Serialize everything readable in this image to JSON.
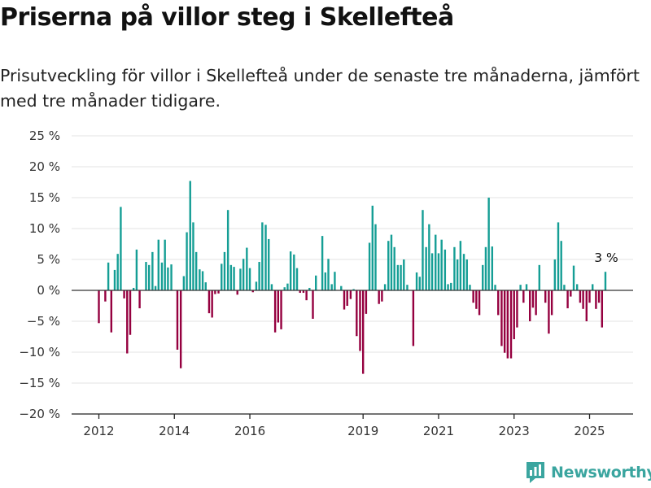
{
  "page": {
    "title": "Priserna på villor steg i Skellefteå",
    "subtitle": "Prisutveckling för villor i Skellefteå under de senaste tre månaderna, jämfört med tre månader tidigare.",
    "brand": "Newsworthy"
  },
  "colors": {
    "positive": "#159e95",
    "negative": "#95003f",
    "grid": "#e3e3e3",
    "zero_line": "#333333",
    "axis_text": "#333333",
    "brand": "#3aa59f"
  },
  "chart_data": {
    "type": "bar",
    "title": "Priserna på villor steg i Skellefteå",
    "subtitle": "Prisutveckling för villor i Skellefteå under de senaste tre månaderna, jämfört med tre månader tidigare.",
    "xlabel": "",
    "ylabel": "",
    "ylim": [
      -20,
      25
    ],
    "y_ticks": [
      25,
      20,
      15,
      10,
      5,
      0,
      -5,
      -10,
      -15,
      -20
    ],
    "y_tick_labels": [
      "25 %",
      "20 %",
      "15 %",
      "10 %",
      "5 %",
      "0 %",
      "−5 %",
      "−10 %",
      "−15 %",
      "−20 %"
    ],
    "x_tick_labels": [
      "2012",
      "2014",
      "2016",
      "2019",
      "2021",
      "2023",
      "2025"
    ],
    "x_tick_years": [
      2012,
      2014,
      2016,
      2019,
      2021,
      2023,
      2025
    ],
    "grid": true,
    "annotation": {
      "text": "3 %",
      "value": 3
    },
    "series": [
      {
        "values": [
          [
            2012.0,
            -5.3
          ],
          [
            2012.17,
            -1.8
          ],
          [
            2012.25,
            4.5
          ],
          [
            2012.33,
            -6.8
          ],
          [
            2012.42,
            3.3
          ],
          [
            2012.5,
            5.9
          ],
          [
            2012.58,
            13.5
          ],
          [
            2012.67,
            -1.3
          ],
          [
            2012.75,
            -10.2
          ],
          [
            2012.83,
            -7.2
          ],
          [
            2012.92,
            0.4
          ],
          [
            2013.0,
            6.6
          ],
          [
            2013.08,
            -2.9
          ],
          [
            2013.25,
            4.6
          ],
          [
            2013.33,
            4.1
          ],
          [
            2013.42,
            6.2
          ],
          [
            2013.5,
            0.7
          ],
          [
            2013.58,
            8.2
          ],
          [
            2013.67,
            4.5
          ],
          [
            2013.75,
            8.2
          ],
          [
            2013.83,
            3.7
          ],
          [
            2013.92,
            4.2
          ],
          [
            2014.08,
            -9.6
          ],
          [
            2014.17,
            -12.6
          ],
          [
            2014.25,
            2.3
          ],
          [
            2014.33,
            9.4
          ],
          [
            2014.42,
            17.7
          ],
          [
            2014.5,
            11.0
          ],
          [
            2014.58,
            6.2
          ],
          [
            2014.67,
            3.4
          ],
          [
            2014.75,
            3.1
          ],
          [
            2014.83,
            1.3
          ],
          [
            2014.92,
            -3.7
          ],
          [
            2015.0,
            -4.4
          ],
          [
            2015.08,
            -0.6
          ],
          [
            2015.17,
            -0.5
          ],
          [
            2015.25,
            4.3
          ],
          [
            2015.33,
            6.2
          ],
          [
            2015.42,
            13.0
          ],
          [
            2015.5,
            4.1
          ],
          [
            2015.58,
            3.8
          ],
          [
            2015.67,
            -0.7
          ],
          [
            2015.75,
            3.5
          ],
          [
            2015.83,
            5.1
          ],
          [
            2015.92,
            6.9
          ],
          [
            2016.0,
            3.6
          ],
          [
            2016.08,
            -0.3
          ],
          [
            2016.17,
            1.4
          ],
          [
            2016.25,
            4.6
          ],
          [
            2016.33,
            11.0
          ],
          [
            2016.42,
            10.6
          ],
          [
            2016.5,
            8.3
          ],
          [
            2016.58,
            1.0
          ],
          [
            2016.67,
            -6.8
          ],
          [
            2016.75,
            -5.2
          ],
          [
            2016.83,
            -6.3
          ],
          [
            2016.92,
            0.5
          ],
          [
            2017.0,
            1.1
          ],
          [
            2017.08,
            6.3
          ],
          [
            2017.17,
            5.8
          ],
          [
            2017.25,
            3.6
          ],
          [
            2017.33,
            -0.4
          ],
          [
            2017.42,
            -0.4
          ],
          [
            2017.5,
            -1.6
          ],
          [
            2017.58,
            0.4
          ],
          [
            2017.67,
            -4.6
          ],
          [
            2017.75,
            2.4
          ],
          [
            2017.92,
            8.8
          ],
          [
            2018.0,
            2.9
          ],
          [
            2018.08,
            5.1
          ],
          [
            2018.17,
            1.0
          ],
          [
            2018.25,
            3.0
          ],
          [
            2018.42,
            0.7
          ],
          [
            2018.5,
            -3.1
          ],
          [
            2018.58,
            -2.5
          ],
          [
            2018.67,
            -1.4
          ],
          [
            2018.75,
            0.2
          ],
          [
            2018.83,
            -7.4
          ],
          [
            2018.92,
            -9.8
          ],
          [
            2019.0,
            -13.5
          ],
          [
            2019.08,
            -3.8
          ],
          [
            2019.17,
            7.7
          ],
          [
            2019.25,
            13.7
          ],
          [
            2019.33,
            10.7
          ],
          [
            2019.42,
            -2.2
          ],
          [
            2019.5,
            -1.8
          ],
          [
            2019.58,
            1.0
          ],
          [
            2019.67,
            8.0
          ],
          [
            2019.75,
            9.0
          ],
          [
            2019.83,
            7.0
          ],
          [
            2019.92,
            4.1
          ],
          [
            2020.0,
            4.1
          ],
          [
            2020.08,
            5.0
          ],
          [
            2020.17,
            0.9
          ],
          [
            2020.33,
            -9.0
          ],
          [
            2020.42,
            2.9
          ],
          [
            2020.5,
            2.2
          ],
          [
            2020.58,
            13.0
          ],
          [
            2020.67,
            7.0
          ],
          [
            2020.75,
            10.7
          ],
          [
            2020.83,
            6.0
          ],
          [
            2020.92,
            9.0
          ],
          [
            2021.0,
            6.0
          ],
          [
            2021.08,
            8.2
          ],
          [
            2021.17,
            6.6
          ],
          [
            2021.25,
            1.0
          ],
          [
            2021.33,
            1.2
          ],
          [
            2021.42,
            7.0
          ],
          [
            2021.5,
            5.0
          ],
          [
            2021.58,
            8.0
          ],
          [
            2021.67,
            5.9
          ],
          [
            2021.75,
            5.0
          ],
          [
            2021.83,
            0.9
          ],
          [
            2021.92,
            -2.0
          ],
          [
            2022.0,
            -3.0
          ],
          [
            2022.08,
            -4.0
          ],
          [
            2022.17,
            4.1
          ],
          [
            2022.25,
            7.0
          ],
          [
            2022.33,
            15.0
          ],
          [
            2022.42,
            7.1
          ],
          [
            2022.5,
            0.9
          ],
          [
            2022.58,
            -4.0
          ],
          [
            2022.67,
            -9.0
          ],
          [
            2022.75,
            -10.1
          ],
          [
            2022.83,
            -11.0
          ],
          [
            2022.92,
            -11.0
          ],
          [
            2023.0,
            -7.9
          ],
          [
            2023.08,
            -6.0
          ],
          [
            2023.17,
            0.9
          ],
          [
            2023.25,
            -2.0
          ],
          [
            2023.33,
            1.0
          ],
          [
            2023.42,
            -5.0
          ],
          [
            2023.5,
            -2.8
          ],
          [
            2023.58,
            -4.0
          ],
          [
            2023.67,
            4.1
          ],
          [
            2023.83,
            -2.0
          ],
          [
            2023.92,
            -7.0
          ],
          [
            2024.0,
            -4.0
          ],
          [
            2024.08,
            5.0
          ],
          [
            2024.17,
            11.0
          ],
          [
            2024.25,
            8.0
          ],
          [
            2024.33,
            0.9
          ],
          [
            2024.42,
            -2.9
          ],
          [
            2024.5,
            -1.0
          ],
          [
            2024.58,
            4.0
          ],
          [
            2024.67,
            1.0
          ],
          [
            2024.75,
            -2.0
          ],
          [
            2024.83,
            -3.0
          ],
          [
            2024.92,
            -5.0
          ],
          [
            2025.0,
            -2.0
          ],
          [
            2025.08,
            1.0
          ],
          [
            2025.17,
            -3.0
          ],
          [
            2025.25,
            -2.0
          ],
          [
            2025.33,
            -6.0
          ],
          [
            2025.42,
            3.0
          ]
        ]
      }
    ]
  }
}
